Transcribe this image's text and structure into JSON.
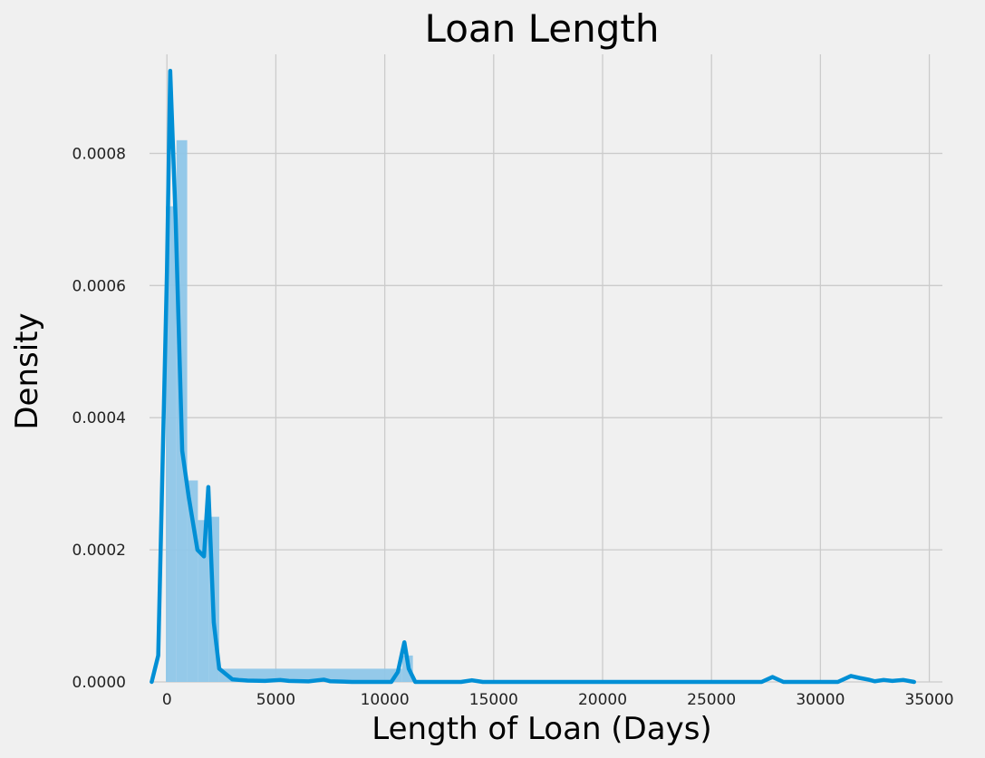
{
  "chart_data": {
    "type": "area",
    "title": "Loan Length",
    "xlabel": "Length of Loan (Days)",
    "ylabel": "Density",
    "xlim": [
      -800,
      35600
    ],
    "ylim": [
      0,
      0.00095
    ],
    "x_ticks": [
      0,
      5000,
      10000,
      15000,
      20000,
      25000,
      30000,
      35000
    ],
    "x_tick_labels": [
      "0",
      "5000",
      "10000",
      "15000",
      "20000",
      "25000",
      "30000",
      "35000"
    ],
    "y_ticks": [
      0,
      0.0002,
      0.0004,
      0.0006,
      0.0008
    ],
    "y_tick_labels": [
      "0.0000",
      "0.0002",
      "0.0004",
      "0.0006",
      "0.0008"
    ],
    "grid": true,
    "colors": {
      "line": "#008fd5",
      "bars": "#8ec6e8",
      "background": "#f0f0f0",
      "grid": "#cbcbcb"
    },
    "histogram": {
      "bin_edges": [
        -50,
        440,
        930,
        1420,
        1910,
        2400,
        10800,
        11290
      ],
      "densities": [
        0.00072,
        0.00082,
        0.000305,
        0.000245,
        0.00025,
        2e-05,
        4e-05
      ]
    },
    "kde": {
      "x": [
        -700,
        -400,
        0,
        150,
        400,
        700,
        1000,
        1400,
        1700,
        1900,
        2150,
        2400,
        2700,
        3000,
        3300,
        3700,
        4500,
        5200,
        5600,
        6500,
        7200,
        7500,
        8500,
        10300,
        10600,
        10900,
        11100,
        11400,
        12000,
        13500,
        14000,
        14500,
        20000,
        27300,
        27800,
        28300,
        30800,
        31400,
        31800,
        32200,
        32500,
        32900,
        33300,
        33800,
        34300
      ],
      "y": [
        0.0,
        4e-05,
        0.00062,
        0.000925,
        0.0007,
        0.00035,
        0.00028,
        0.0002,
        0.00019,
        0.000295,
        9e-05,
        2e-05,
        1.2e-05,
        4e-06,
        3e-06,
        2e-06,
        1.5e-06,
        3e-06,
        1.5e-06,
        8e-07,
        3.5e-06,
        1e-06,
        0.0,
        0.0,
        1.5e-05,
        6e-05,
        2e-05,
        0.0,
        0.0,
        0.0,
        2.5e-06,
        0.0,
        0.0,
        0.0,
        7.5e-06,
        0.0,
        0.0,
        9e-06,
        6e-06,
        3.5e-06,
        1e-06,
        3e-06,
        1.5e-06,
        3e-06,
        0.0
      ]
    }
  }
}
